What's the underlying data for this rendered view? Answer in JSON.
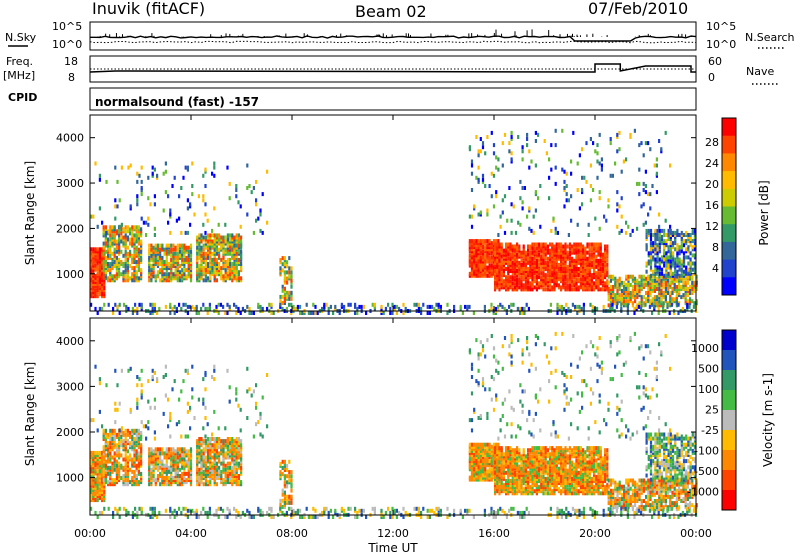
{
  "chart_data": [
    {
      "type": "line",
      "panel": "summary",
      "title": "Inuvik (fitACF)",
      "subtitle": "Beam 02",
      "date": "07/Feb/2010",
      "nsky_label": "N.Sky",
      "nsearch_label": "N.Search",
      "left_ticks": [
        "10^5",
        "10^0"
      ],
      "right_ticks": [
        "10^5",
        "10^0"
      ]
    },
    {
      "type": "line",
      "panel": "frequency",
      "freq_label_1": "Freq.",
      "freq_label_2": "[MHz]",
      "left_ticks": [
        "18",
        "8"
      ],
      "nave_label": "Nave",
      "right_ticks": [
        "60",
        "0"
      ],
      "cpid_label": "CPID",
      "cpid_value": "normalsound (fast) -157"
    },
    {
      "type": "heatmap",
      "panel": "power",
      "ylabel": "Slant Range [km]",
      "yticks": [
        "4000",
        "3000",
        "2000",
        "1000"
      ],
      "colorbar_label": "Power [dB]",
      "colorbar_ticks": [
        "28",
        "24",
        "20",
        "16",
        "12",
        "8",
        "4"
      ]
    },
    {
      "type": "heatmap",
      "panel": "velocity",
      "ylabel": "Slant Range [km]",
      "yticks": [
        "4000",
        "3000",
        "2000",
        "1000"
      ],
      "colorbar_label": "Velocity [m s-1]",
      "colorbar_ticks": [
        "1000",
        "500",
        "100",
        "25",
        "-25",
        "-100",
        "-500",
        "-1000"
      ],
      "xlabel": "Time UT",
      "xticks": [
        "00:00",
        "04:00",
        "08:00",
        "12:00",
        "16:00",
        "20:00",
        "00:00"
      ]
    }
  ]
}
